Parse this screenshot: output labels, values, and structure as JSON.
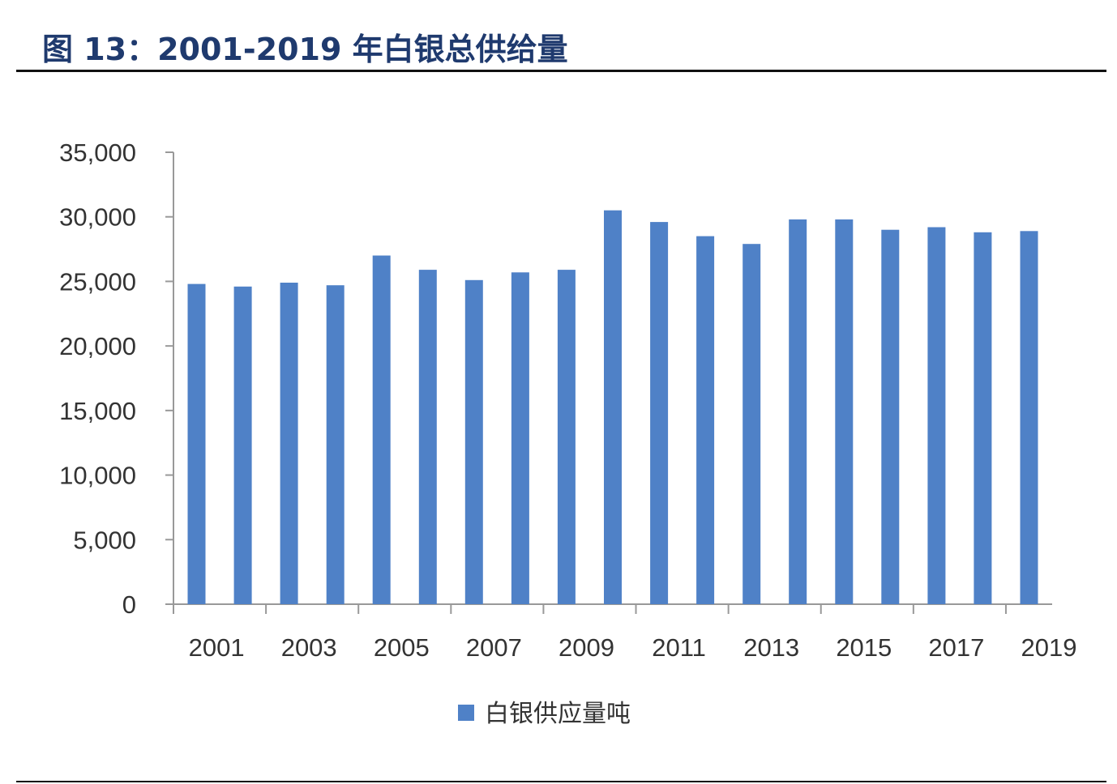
{
  "title": "图 13：2001-2019 年白银总供给量",
  "chart_data": {
    "type": "bar",
    "title": "图 13：2001-2019 年白银总供给量",
    "xlabel": "",
    "ylabel": "",
    "categories": [
      "2001",
      "2002",
      "2003",
      "2004",
      "2005",
      "2006",
      "2007",
      "2008",
      "2009",
      "2010",
      "2011",
      "2012",
      "2013",
      "2014",
      "2015",
      "2016",
      "2017",
      "2018",
      "2019"
    ],
    "x_tick_labels": [
      "2001",
      "2003",
      "2005",
      "2007",
      "2009",
      "2011",
      "2013",
      "2015",
      "2017",
      "2019"
    ],
    "y_tick_labels": [
      "0",
      "5,000",
      "10,000",
      "15,000",
      "20,000",
      "25,000",
      "30,000",
      "35,000"
    ],
    "ylim": [
      0,
      35000
    ],
    "series": [
      {
        "name": "白银供应量吨",
        "color": "#4f81c7",
        "values": [
          24800,
          24600,
          24900,
          24700,
          27000,
          25900,
          25100,
          25700,
          25900,
          30500,
          29600,
          28500,
          27900,
          29800,
          29800,
          29000,
          29200,
          28800,
          28900
        ]
      }
    ],
    "legend": {
      "position": "bottom",
      "label": "白银供应量吨"
    },
    "grid": false
  }
}
